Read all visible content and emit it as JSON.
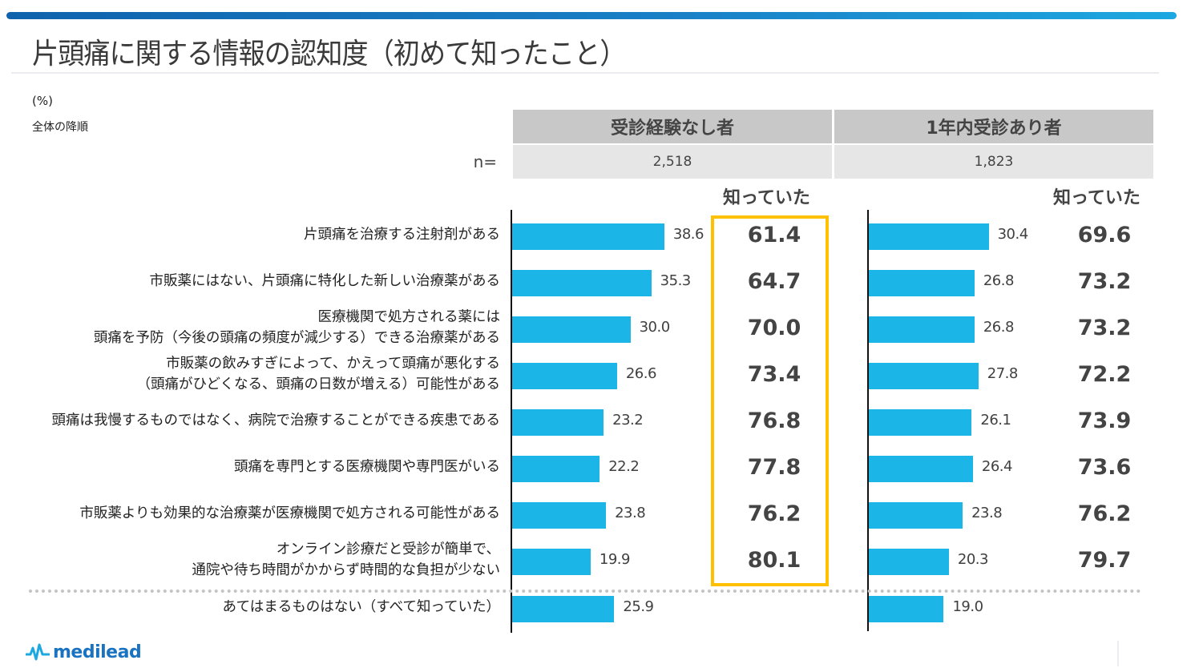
{
  "page": {
    "title": "片頭痛に関する情報の認知度（初めて知ったこと）",
    "unit_label": "(%)",
    "sort_note": "全体の降順",
    "n_label": "n=",
    "known_header": "知っていた",
    "logo_text": "medilead"
  },
  "colors": {
    "accent_bar": "#1cb5e8",
    "highlight_border": "#ffc000",
    "header_fill": "#c8c8c8",
    "n_fill": "#e6e6e6",
    "top_band": "#1a82c8"
  },
  "chart_data": {
    "type": "bar",
    "orientation": "horizontal",
    "title": "片頭痛に関する情報の認知度（初めて知ったこと）",
    "xlabel": "",
    "ylabel": "",
    "unit": "%",
    "xlim": [
      0,
      100
    ],
    "grid": false,
    "legend": "none",
    "categories": [
      [
        "片頭痛を治療する注射剤がある"
      ],
      [
        "市販薬にはない、片頭痛に特化した新しい治療薬がある"
      ],
      [
        "医療機関で処方される薬には",
        "頭痛を予防（今後の頭痛の頻度が減少する）できる治療薬がある"
      ],
      [
        "市販薬の飲みすぎによって、かえって頭痛が悪化する",
        "（頭痛がひどくなる、頭痛の日数が増える）可能性がある"
      ],
      [
        "頭痛は我慢するものではなく、病院で治療することができる疾患である"
      ],
      [
        "頭痛を専門とする医療機関や専門医がいる"
      ],
      [
        "市販薬よりも効果的な治療薬が医療機関で処方される可能性がある"
      ],
      [
        "オンライン診療だと受診が簡単で、",
        "通院や待ち時間がかからず時間的な負担が少ない"
      ],
      [
        "あてはまるものはない（すべて知っていた）"
      ]
    ],
    "series": [
      {
        "name": "受診経験なし者",
        "n": "2,518",
        "values": [
          "38.6",
          "35.3",
          "30.0",
          "26.6",
          "23.2",
          "22.2",
          "23.8",
          "19.9",
          "25.9"
        ],
        "known": [
          "61.4",
          "64.7",
          "70.0",
          "73.4",
          "76.8",
          "77.8",
          "76.2",
          "80.1",
          null
        ]
      },
      {
        "name": "1年内受診あり者",
        "n": "1,823",
        "values": [
          "30.4",
          "26.8",
          "26.8",
          "27.8",
          "26.1",
          "26.4",
          "23.8",
          "20.3",
          "19.0"
        ],
        "known": [
          "69.6",
          "73.2",
          "73.2",
          "72.2",
          "73.9",
          "73.6",
          "76.2",
          "79.7",
          null
        ]
      }
    ],
    "highlighted_column": "受診経験なし者 / 知っていた"
  }
}
